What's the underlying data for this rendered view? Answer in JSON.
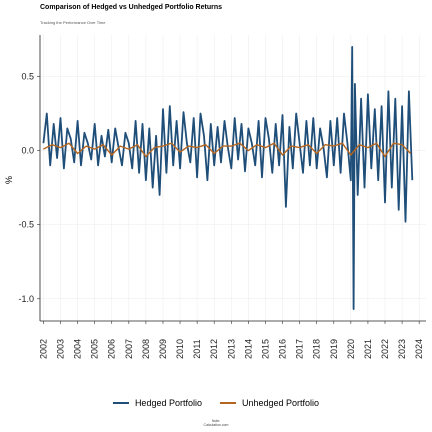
{
  "colors": {
    "hedged": "#1F4E79",
    "unhedged": "#B5651D"
  },
  "chart_data": {
    "type": "line",
    "title": "Comparison of Hedged vs Unhedged Portfolio Returns",
    "subtitle": "Tracking the Performance Over Time",
    "xlabel": "",
    "ylabel": "%",
    "xlim": [
      2001.8,
      2024.4
    ],
    "ylim": [
      -1.15,
      0.78
    ],
    "yticks": [
      0.5,
      0.0,
      -0.5,
      -1.0
    ],
    "ytick_labels": [
      "0.5",
      "0.0",
      "-0.5",
      "-1.0"
    ],
    "xticks": [
      2002,
      2003,
      2004,
      2005,
      2006,
      2007,
      2008,
      2009,
      2010,
      2011,
      2012,
      2013,
      2014,
      2015,
      2016,
      2017,
      2018,
      2019,
      2020,
      2021,
      2022,
      2023,
      2024
    ],
    "grid": true,
    "legend_position": "bottom",
    "series": [
      {
        "name": "Hedged Portfolio",
        "color": "#1F4E79",
        "x": [
          2002.0,
          2002.2,
          2002.4,
          2002.6,
          2002.8,
          2003.0,
          2003.2,
          2003.4,
          2003.6,
          2003.8,
          2004.0,
          2004.2,
          2004.4,
          2004.6,
          2004.8,
          2005.0,
          2005.2,
          2005.4,
          2005.6,
          2005.8,
          2006.0,
          2006.2,
          2006.4,
          2006.6,
          2006.8,
          2007.0,
          2007.2,
          2007.4,
          2007.6,
          2007.8,
          2008.0,
          2008.2,
          2008.4,
          2008.6,
          2008.8,
          2009.0,
          2009.2,
          2009.4,
          2009.6,
          2009.8,
          2010.0,
          2010.2,
          2010.4,
          2010.6,
          2010.8,
          2011.0,
          2011.2,
          2011.4,
          2011.6,
          2011.8,
          2012.0,
          2012.2,
          2012.4,
          2012.6,
          2012.8,
          2013.0,
          2013.2,
          2013.4,
          2013.6,
          2013.8,
          2014.0,
          2014.2,
          2014.4,
          2014.6,
          2014.8,
          2015.0,
          2015.2,
          2015.4,
          2015.6,
          2015.8,
          2016.0,
          2016.2,
          2016.4,
          2016.6,
          2016.8,
          2017.0,
          2017.2,
          2017.4,
          2017.6,
          2017.8,
          2018.0,
          2018.2,
          2018.4,
          2018.6,
          2018.8,
          2019.0,
          2019.2,
          2019.4,
          2019.6,
          2019.8,
          2020.0,
          2020.08,
          2020.16,
          2020.24,
          2020.4,
          2020.6,
          2020.8,
          2021.0,
          2021.2,
          2021.4,
          2021.6,
          2021.8,
          2022.0,
          2022.2,
          2022.4,
          2022.6,
          2022.8,
          2023.0,
          2023.2,
          2023.4,
          2023.6
        ],
        "values": [
          0.05,
          0.25,
          -0.1,
          0.18,
          -0.05,
          0.22,
          -0.12,
          0.15,
          0.08,
          -0.08,
          0.2,
          -0.1,
          0.12,
          0.05,
          -0.06,
          0.18,
          -0.1,
          0.1,
          -0.04,
          0.14,
          -0.08,
          0.15,
          0.02,
          -0.1,
          0.12,
          0.05,
          -0.12,
          0.2,
          -0.15,
          0.18,
          -0.2,
          0.15,
          -0.25,
          0.1,
          -0.3,
          0.28,
          -0.15,
          0.3,
          -0.1,
          0.2,
          -0.12,
          0.26,
          0.05,
          -0.08,
          0.22,
          -0.18,
          0.25,
          0.1,
          -0.2,
          0.18,
          -0.1,
          0.16,
          -0.08,
          0.2,
          0.02,
          -0.12,
          0.22,
          -0.06,
          0.18,
          -0.14,
          0.15,
          0.05,
          -0.1,
          0.2,
          -0.18,
          0.22,
          0.08,
          -0.15,
          0.18,
          -0.1,
          0.24,
          -0.38,
          0.16,
          -0.12,
          0.25,
          0.05,
          -0.15,
          0.2,
          -0.1,
          0.22,
          -0.12,
          0.15,
          0.02,
          -0.18,
          0.2,
          -0.1,
          0.22,
          -0.15,
          0.25,
          0.05,
          -0.2,
          0.7,
          -1.07,
          0.45,
          -0.3,
          0.35,
          -0.25,
          0.38,
          -0.12,
          0.28,
          -0.2,
          0.3,
          -0.35,
          0.4,
          -0.25,
          0.35,
          -0.4,
          0.3,
          -0.48,
          0.4,
          -0.2
        ]
      },
      {
        "name": "Unhedged Portfolio",
        "color": "#B5651D",
        "x": [
          2002.0,
          2002.5,
          2003.0,
          2003.5,
          2004.0,
          2004.5,
          2005.0,
          2005.5,
          2006.0,
          2006.5,
          2007.0,
          2007.5,
          2008.0,
          2008.5,
          2009.0,
          2009.5,
          2010.0,
          2010.5,
          2011.0,
          2011.5,
          2012.0,
          2012.5,
          2013.0,
          2013.5,
          2014.0,
          2014.5,
          2015.0,
          2015.5,
          2016.0,
          2016.5,
          2017.0,
          2017.5,
          2018.0,
          2018.5,
          2019.0,
          2019.5,
          2020.0,
          2020.5,
          2021.0,
          2021.5,
          2022.0,
          2022.5,
          2023.0,
          2023.5
        ],
        "values": [
          0.01,
          0.04,
          0.02,
          0.05,
          -0.02,
          0.03,
          0.01,
          0.04,
          -0.03,
          0.03,
          0.01,
          0.04,
          -0.04,
          0.02,
          0.03,
          0.05,
          -0.01,
          0.03,
          0.02,
          0.04,
          -0.02,
          0.03,
          0.03,
          0.05,
          0.0,
          0.04,
          0.02,
          0.05,
          -0.03,
          0.03,
          0.02,
          0.04,
          -0.02,
          0.04,
          0.03,
          0.05,
          -0.03,
          0.04,
          0.02,
          0.05,
          -0.04,
          0.05,
          0.04,
          -0.02
        ]
      }
    ]
  },
  "legend": {
    "hedged": "Hedged Portfolio",
    "unhedged": "Unhedged Portfolio"
  },
  "note": {
    "line1": "Note:",
    "line2": "Calculation.com"
  }
}
